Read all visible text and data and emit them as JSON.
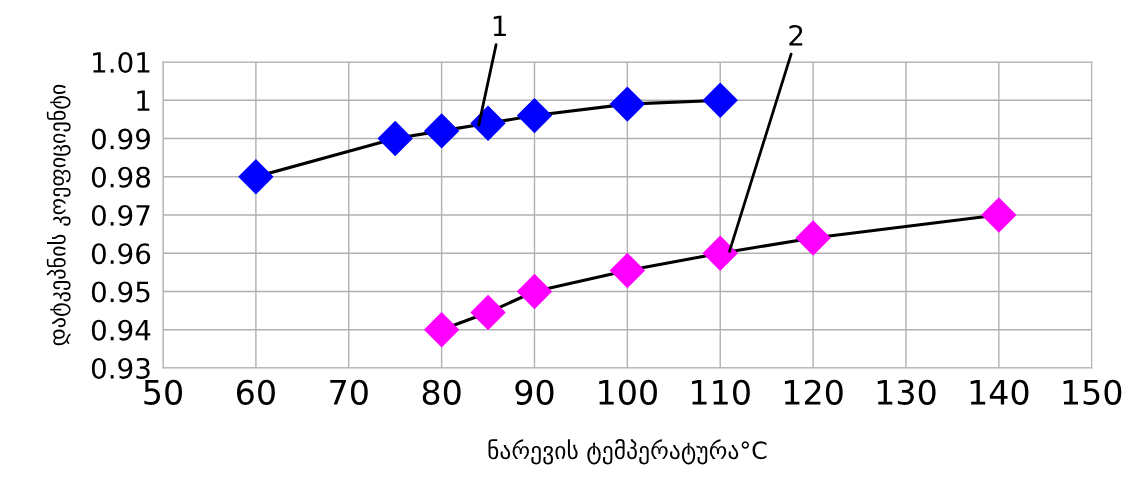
{
  "chart_data": {
    "type": "line",
    "xlabel": "ნარევის ტემპერატურა°C",
    "ylabel": "დატკეპნის კოეფიციენტი",
    "xlim": [
      50,
      150
    ],
    "xticks": [
      50,
      60,
      70,
      80,
      90,
      100,
      110,
      120,
      130,
      140,
      150
    ],
    "ylim": [
      0.93,
      1.01
    ],
    "yticks": [
      0.93,
      0.94,
      0.95,
      0.96,
      0.97,
      0.98,
      0.99,
      1,
      1.01
    ],
    "grid": true,
    "marker": "diamond",
    "line_style": "solid",
    "series": [
      {
        "color": "#0000ff",
        "x": [
          60,
          75,
          80,
          85,
          90,
          100,
          110
        ],
        "values": [
          0.98,
          0.99,
          0.992,
          0.994,
          0.996,
          0.999,
          1.0
        ]
      },
      {
        "color": "#ff00ff",
        "x": [
          80,
          85,
          90,
          100,
          110,
          120,
          140
        ],
        "values": [
          0.94,
          0.9445,
          0.95,
          0.9555,
          0.96,
          0.964,
          0.97
        ]
      }
    ],
    "annotations": [
      {
        "text": "1",
        "x": 84,
        "y": 0.9935
      },
      {
        "text": "2",
        "x": 111,
        "y": 0.9605
      }
    ]
  }
}
